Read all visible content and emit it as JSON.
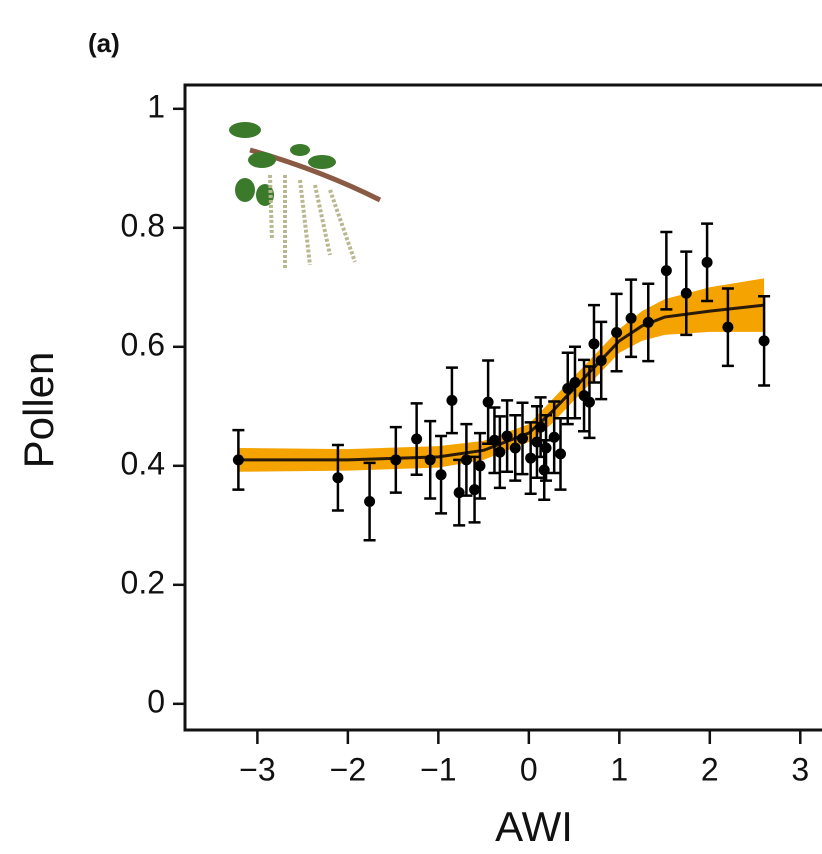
{
  "chart_data": {
    "type": "scatter",
    "panel_label": "(a)",
    "x_label": "AWI",
    "y_label": "Pollen",
    "xlim": [
      -3.8,
      3.24
    ],
    "ylim": [
      -0.044,
      1.04
    ],
    "xticks": [
      {
        "value": -3,
        "label": "−3"
      },
      {
        "value": -2,
        "label": "−2"
      },
      {
        "value": -1,
        "label": "−1"
      },
      0,
      1,
      2,
      3
    ],
    "yticks": [
      0,
      0.2,
      0.4,
      0.6,
      0.8,
      1
    ],
    "point_color": "#000000",
    "band_color": "#f5a300",
    "line_color": "#2a1a0a",
    "x": [
      -3.21,
      -2.11,
      -1.76,
      -1.47,
      -1.24,
      -1.09,
      -0.97,
      -0.85,
      -0.77,
      -0.69,
      -0.6,
      -0.54,
      -0.45,
      -0.38,
      -0.32,
      -0.24,
      -0.15,
      -0.07,
      0.02,
      0.09,
      0.13,
      0.17,
      0.19,
      0.28,
      0.35,
      0.43,
      0.51,
      0.61,
      0.67,
      0.72,
      0.8,
      0.97,
      1.13,
      1.32,
      1.52,
      1.74,
      1.97,
      2.2,
      2.6
    ],
    "y": [
      0.41,
      0.38,
      0.34,
      0.41,
      0.445,
      0.41,
      0.385,
      0.51,
      0.355,
      0.41,
      0.36,
      0.4,
      0.507,
      0.443,
      0.423,
      0.45,
      0.43,
      0.446,
      0.413,
      0.44,
      0.465,
      0.393,
      0.43,
      0.448,
      0.42,
      0.53,
      0.54,
      0.518,
      0.507,
      0.605,
      0.577,
      0.624,
      0.648,
      0.641,
      0.728,
      0.69,
      0.742,
      0.633,
      0.61
    ],
    "yerr": [
      0.05,
      0.055,
      0.065,
      0.055,
      0.06,
      0.065,
      0.065,
      0.055,
      0.055,
      0.06,
      0.055,
      0.055,
      0.07,
      0.055,
      0.06,
      0.06,
      0.055,
      0.06,
      0.06,
      0.06,
      0.05,
      0.05,
      0.055,
      0.06,
      0.06,
      0.06,
      0.06,
      0.06,
      0.06,
      0.065,
      0.065,
      0.065,
      0.065,
      0.065,
      0.065,
      0.07,
      0.065,
      0.065,
      0.075
    ],
    "fit": {
      "x": [
        -3.2,
        -2,
        -1,
        -0.5,
        0,
        0.25,
        0.5,
        0.75,
        1,
        1.25,
        1.5,
        2,
        2.6
      ],
      "y": [
        0.41,
        0.41,
        0.415,
        0.426,
        0.455,
        0.49,
        0.53,
        0.57,
        0.61,
        0.635,
        0.65,
        0.66,
        0.67
      ],
      "lower": [
        0.39,
        0.392,
        0.397,
        0.41,
        0.44,
        0.47,
        0.51,
        0.55,
        0.59,
        0.61,
        0.62,
        0.625,
        0.625
      ],
      "upper": [
        0.43,
        0.428,
        0.433,
        0.442,
        0.47,
        0.51,
        0.55,
        0.59,
        0.63,
        0.66,
        0.68,
        0.7,
        0.715
      ]
    }
  }
}
